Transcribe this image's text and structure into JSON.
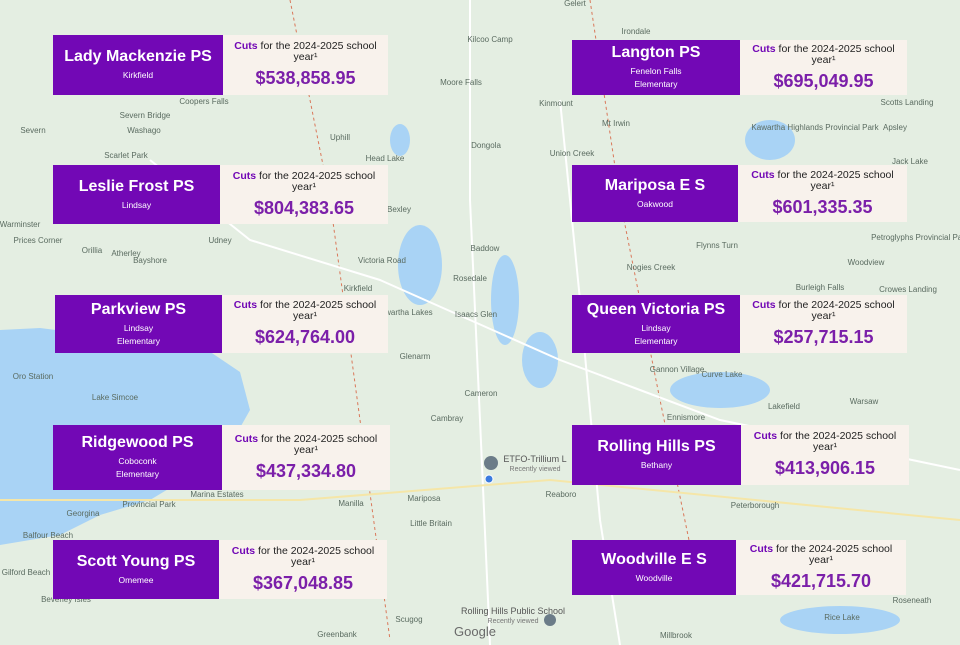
{
  "cuts_word": "Cuts",
  "cuts_rest": "for the 2024-2025 school year¹",
  "cards": [
    {
      "name": "Lady Mackenzie PS",
      "lines": [
        "Kirkfield"
      ],
      "amount": "$538,858.95"
    },
    {
      "name": "Langton PS",
      "lines": [
        "Fenelon Falls",
        "Elementary"
      ],
      "amount": "$695,049.95"
    },
    {
      "name": "Leslie Frost PS",
      "lines": [
        "Lindsay"
      ],
      "amount": "$804,383.65"
    },
    {
      "name": "Mariposa E S",
      "lines": [
        "Oakwood"
      ],
      "amount": "$601,335.35"
    },
    {
      "name": "Parkview PS",
      "lines": [
        "Lindsay",
        "Elementary"
      ],
      "amount": "$624,764.00"
    },
    {
      "name": "Queen Victoria PS",
      "lines": [
        "Lindsay",
        "Elementary"
      ],
      "amount": "$257,715.15"
    },
    {
      "name": "Ridgewood PS",
      "lines": [
        "Coboconk",
        "Elementary"
      ],
      "amount": "$437,334.80"
    },
    {
      "name": "Rolling Hills PS",
      "lines": [
        "Bethany"
      ],
      "amount": "$413,906.15"
    },
    {
      "name": "Scott Young PS",
      "lines": [
        "Omemee"
      ],
      "amount": "$367,048.85"
    },
    {
      "name": "Woodville E S",
      "lines": [
        "Woodville"
      ],
      "amount": "$421,715.70"
    }
  ],
  "places": [
    "Gelert",
    "Irondale",
    "Kilcoo Camp",
    "Moore Falls",
    "Kinmount",
    "Coopers Falls",
    "Severn Bridge",
    "Washago",
    "Severn",
    "Uphill",
    "Scarlet Park",
    "Head Lake",
    "Dongola",
    "Union Creek",
    "Mt Irwin",
    "Kawartha Highlands Provincial Park",
    "Scotts Landing",
    "Apsley",
    "Jack Lake",
    "Warminster",
    "Prices Corner",
    "Orillia",
    "Atherley",
    "Udney",
    "Bexley",
    "Baddow",
    "Flynns Turn",
    "Petroglyphs Provincial Park",
    "Victoria Road",
    "Bayshore",
    "Rosedale",
    "Nogies Creek",
    "Woodview",
    "Burleigh Falls",
    "Crowes Landing",
    "Kirkfield",
    "Kawartha Lakes",
    "Isaacs Glen",
    "Glenarm",
    "Oro Station",
    "Lake Simcoe",
    "Gannon Village",
    "Curve Lake",
    "Cameron",
    "Warsaw",
    "Ennismore",
    "Lakefield",
    "Cambray",
    "Mariposa",
    "Georgina",
    "Manilla",
    "Little Britain",
    "Reaboro",
    "Peterborough",
    "Marina Estates",
    "Provincial Park",
    "Balfour Beach",
    "Gilford Beach",
    "Beverley Isles",
    "Scugog",
    "Greenbank",
    "Millbrook",
    "Rice Lake",
    "Roseneath"
  ],
  "pins": [
    {
      "label": "ETFO-Trillium L",
      "note": "Recently viewed"
    },
    {
      "label": "Rolling Hills Public School",
      "note": "Recently viewed"
    }
  ],
  "logo": "Google"
}
